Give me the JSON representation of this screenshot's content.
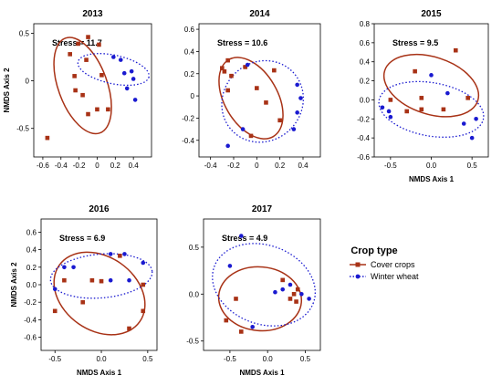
{
  "colors": {
    "cover": "#a83216",
    "wheat": "#1a1ad0",
    "axis": "#000000"
  },
  "legend": {
    "title": "Crop type",
    "items": [
      "Cover crops",
      "Winter wheat"
    ]
  },
  "chart_data": [
    {
      "type": "scatter",
      "title": "2013",
      "stress": "Stress = 11.7",
      "xlabel": "",
      "ylabel": "NMDS Axis 2",
      "xlim": [
        -0.7,
        0.6
      ],
      "ylim": [
        -0.8,
        0.6
      ],
      "xticks": [
        "-0.6",
        "-0.4",
        "-0.2",
        "0",
        "0.2",
        "0.4"
      ],
      "xtickvals": [
        -0.6,
        -0.4,
        -0.2,
        0,
        0.2,
        0.4
      ],
      "yticks": [
        "-0.5",
        "0",
        "0.5"
      ],
      "ytickvals": [
        -0.5,
        0,
        0.5
      ],
      "series": [
        {
          "name": "Cover crops",
          "points": [
            [
              -0.55,
              -0.6
            ],
            [
              -0.3,
              0.28
            ],
            [
              -0.25,
              0.05
            ],
            [
              -0.24,
              -0.1
            ],
            [
              -0.21,
              0.39
            ],
            [
              -0.16,
              -0.15
            ],
            [
              -0.12,
              0.22
            ],
            [
              -0.1,
              0.46
            ],
            [
              -0.1,
              -0.35
            ],
            [
              0.0,
              -0.3
            ],
            [
              0.02,
              0.38
            ],
            [
              0.05,
              0.06
            ],
            [
              0.12,
              -0.3
            ]
          ]
        },
        {
          "name": "Winter wheat",
          "points": [
            [
              0.18,
              0.25
            ],
            [
              0.26,
              0.22
            ],
            [
              0.3,
              0.08
            ],
            [
              0.38,
              0.1
            ],
            [
              0.4,
              0.02
            ],
            [
              0.33,
              -0.08
            ],
            [
              0.42,
              -0.2
            ]
          ]
        }
      ],
      "ellipses": [
        {
          "series": "Cover crops",
          "cx": -0.16,
          "cy": -0.05,
          "rx": 0.27,
          "ry": 0.53,
          "angle": 20
        },
        {
          "series": "Winter wheat",
          "cx": 0.18,
          "cy": 0.12,
          "rx": 0.4,
          "ry": 0.15,
          "angle": -12
        }
      ]
    },
    {
      "type": "scatter",
      "title": "2014",
      "stress": "Stress = 10.6",
      "xlabel": "",
      "ylabel": "",
      "xlim": [
        -0.5,
        0.55
      ],
      "ylim": [
        -0.55,
        0.65
      ],
      "xticks": [
        "-0.4",
        "-0.2",
        "0",
        "0.2",
        "0.4"
      ],
      "xtickvals": [
        -0.4,
        -0.2,
        0,
        0.2,
        0.4
      ],
      "yticks": [
        "-0.4",
        "-0.2",
        "0",
        "0.2",
        "0.4",
        "0.6"
      ],
      "ytickvals": [
        -0.4,
        -0.2,
        0,
        0.2,
        0.4,
        0.6
      ],
      "series": [
        {
          "name": "Cover crops",
          "points": [
            [
              -0.3,
              0.25
            ],
            [
              -0.28,
              0.22
            ],
            [
              -0.25,
              0.32
            ],
            [
              -0.22,
              0.18
            ],
            [
              -0.25,
              0.05
            ],
            [
              -0.1,
              0.26
            ],
            [
              0.0,
              0.07
            ],
            [
              -0.05,
              -0.36
            ],
            [
              0.08,
              -0.06
            ],
            [
              0.15,
              0.23
            ],
            [
              0.2,
              -0.22
            ]
          ]
        },
        {
          "name": "Winter wheat",
          "points": [
            [
              -0.08,
              0.28
            ],
            [
              -0.12,
              -0.3
            ],
            [
              -0.25,
              -0.45
            ],
            [
              0.35,
              0.1
            ],
            [
              0.38,
              -0.02
            ],
            [
              0.35,
              -0.15
            ],
            [
              0.32,
              -0.3
            ]
          ]
        }
      ],
      "ellipses": [
        {
          "series": "Cover crops",
          "cx": -0.05,
          "cy": -0.02,
          "rx": 0.23,
          "ry": 0.4,
          "angle": 30
        },
        {
          "series": "Winter wheat",
          "cx": 0.05,
          "cy": -0.05,
          "rx": 0.34,
          "ry": 0.38,
          "angle": -45
        }
      ]
    },
    {
      "type": "scatter",
      "title": "2015",
      "stress": "Stress = 9.5",
      "xlabel": "NMDS Axis 1",
      "ylabel": "",
      "xlim": [
        -0.7,
        0.7
      ],
      "ylim": [
        -0.6,
        0.8
      ],
      "xticks": [
        "-0.5",
        "0.0",
        "0.5"
      ],
      "xtickvals": [
        -0.5,
        0,
        0.5
      ],
      "yticks": [
        "-0.6",
        "-0.4",
        "-0.2",
        "0.0",
        "0.2",
        "0.4",
        "0.6",
        "0.8"
      ],
      "ytickvals": [
        -0.6,
        -0.4,
        -0.2,
        0,
        0.2,
        0.4,
        0.6,
        0.8
      ],
      "series": [
        {
          "name": "Cover crops",
          "points": [
            [
              -0.5,
              0.0
            ],
            [
              -0.3,
              -0.12
            ],
            [
              -0.2,
              0.3
            ],
            [
              -0.12,
              0.02
            ],
            [
              -0.12,
              -0.1
            ],
            [
              0.15,
              -0.1
            ],
            [
              0.3,
              0.52
            ],
            [
              0.45,
              0.02
            ]
          ]
        },
        {
          "name": "Winter wheat",
          "points": [
            [
              -0.6,
              -0.08
            ],
            [
              -0.52,
              -0.12
            ],
            [
              -0.5,
              -0.18
            ],
            [
              0.0,
              0.26
            ],
            [
              0.2,
              0.07
            ],
            [
              0.4,
              -0.25
            ],
            [
              0.5,
              -0.4
            ],
            [
              0.55,
              -0.2
            ]
          ]
        }
      ],
      "ellipses": [
        {
          "series": "Cover crops",
          "cx": 0.0,
          "cy": 0.15,
          "rx": 0.6,
          "ry": 0.3,
          "angle": -18
        },
        {
          "series": "Winter wheat",
          "cx": 0.0,
          "cy": -0.1,
          "rx": 0.65,
          "ry": 0.28,
          "angle": -10
        }
      ]
    },
    {
      "type": "scatter",
      "title": "2016",
      "stress": "Stress = 6.9",
      "xlabel": "NMDS Axis 1",
      "ylabel": "NMDS Axis 2",
      "xlim": [
        -0.65,
        0.6
      ],
      "ylim": [
        -0.75,
        0.75
      ],
      "xticks": [
        "-0.5",
        "0.0",
        "0.5"
      ],
      "xtickvals": [
        -0.5,
        0,
        0.5
      ],
      "yticks": [
        "-0.6",
        "-0.4",
        "-0.2",
        "0.0",
        "0.2",
        "0.4",
        "0.6"
      ],
      "ytickvals": [
        -0.6,
        -0.4,
        -0.2,
        0,
        0.2,
        0.4,
        0.6
      ],
      "series": [
        {
          "name": "Cover crops",
          "points": [
            [
              -0.5,
              -0.3
            ],
            [
              -0.4,
              0.05
            ],
            [
              -0.2,
              -0.2
            ],
            [
              -0.1,
              0.05
            ],
            [
              0.0,
              0.04
            ],
            [
              0.2,
              0.33
            ],
            [
              0.3,
              -0.5
            ],
            [
              0.45,
              -0.3
            ],
            [
              0.45,
              0.0
            ]
          ]
        },
        {
          "name": "Winter wheat",
          "points": [
            [
              -0.5,
              -0.05
            ],
            [
              -0.4,
              0.2
            ],
            [
              -0.3,
              0.2
            ],
            [
              0.1,
              0.35
            ],
            [
              0.1,
              0.05
            ],
            [
              0.25,
              0.35
            ],
            [
              0.3,
              0.05
            ],
            [
              0.45,
              0.25
            ]
          ]
        }
      ],
      "ellipses": [
        {
          "series": "Cover crops",
          "cx": -0.02,
          "cy": -0.1,
          "rx": 0.53,
          "ry": 0.42,
          "angle": -35
        },
        {
          "series": "Winter wheat",
          "cx": 0.0,
          "cy": 0.1,
          "rx": 0.55,
          "ry": 0.25,
          "angle": 5
        }
      ]
    },
    {
      "type": "scatter",
      "title": "2017",
      "stress": "Stress = 4.9",
      "xlabel": "NMDS Axis 1",
      "ylabel": "",
      "xlim": [
        -0.85,
        0.7
      ],
      "ylim": [
        -0.6,
        0.8
      ],
      "xticks": [
        "-0.5",
        "0.0",
        "0.5"
      ],
      "xtickvals": [
        -0.5,
        0,
        0.5
      ],
      "yticks": [
        "-0.5",
        "0.0",
        "0.5"
      ],
      "ytickvals": [
        -0.5,
        0,
        0.5
      ],
      "series": [
        {
          "name": "Cover crops",
          "points": [
            [
              -0.55,
              -0.28
            ],
            [
              -0.42,
              -0.05
            ],
            [
              -0.35,
              -0.4
            ],
            [
              0.2,
              0.15
            ],
            [
              0.3,
              -0.05
            ],
            [
              0.35,
              0.0
            ],
            [
              0.38,
              -0.08
            ],
            [
              0.4,
              0.05
            ]
          ]
        },
        {
          "name": "Winter wheat",
          "points": [
            [
              -0.5,
              0.3
            ],
            [
              -0.35,
              0.62
            ],
            [
              -0.2,
              -0.35
            ],
            [
              0.1,
              0.02
            ],
            [
              0.2,
              0.05
            ],
            [
              0.3,
              0.1
            ],
            [
              0.45,
              0.0
            ],
            [
              0.55,
              -0.05
            ]
          ]
        }
      ],
      "ellipses": [
        {
          "series": "Cover crops",
          "cx": -0.1,
          "cy": -0.05,
          "rx": 0.55,
          "ry": 0.34,
          "angle": -5
        },
        {
          "series": "Winter wheat",
          "cx": -0.05,
          "cy": 0.1,
          "rx": 0.7,
          "ry": 0.42,
          "angle": -20
        }
      ]
    }
  ]
}
